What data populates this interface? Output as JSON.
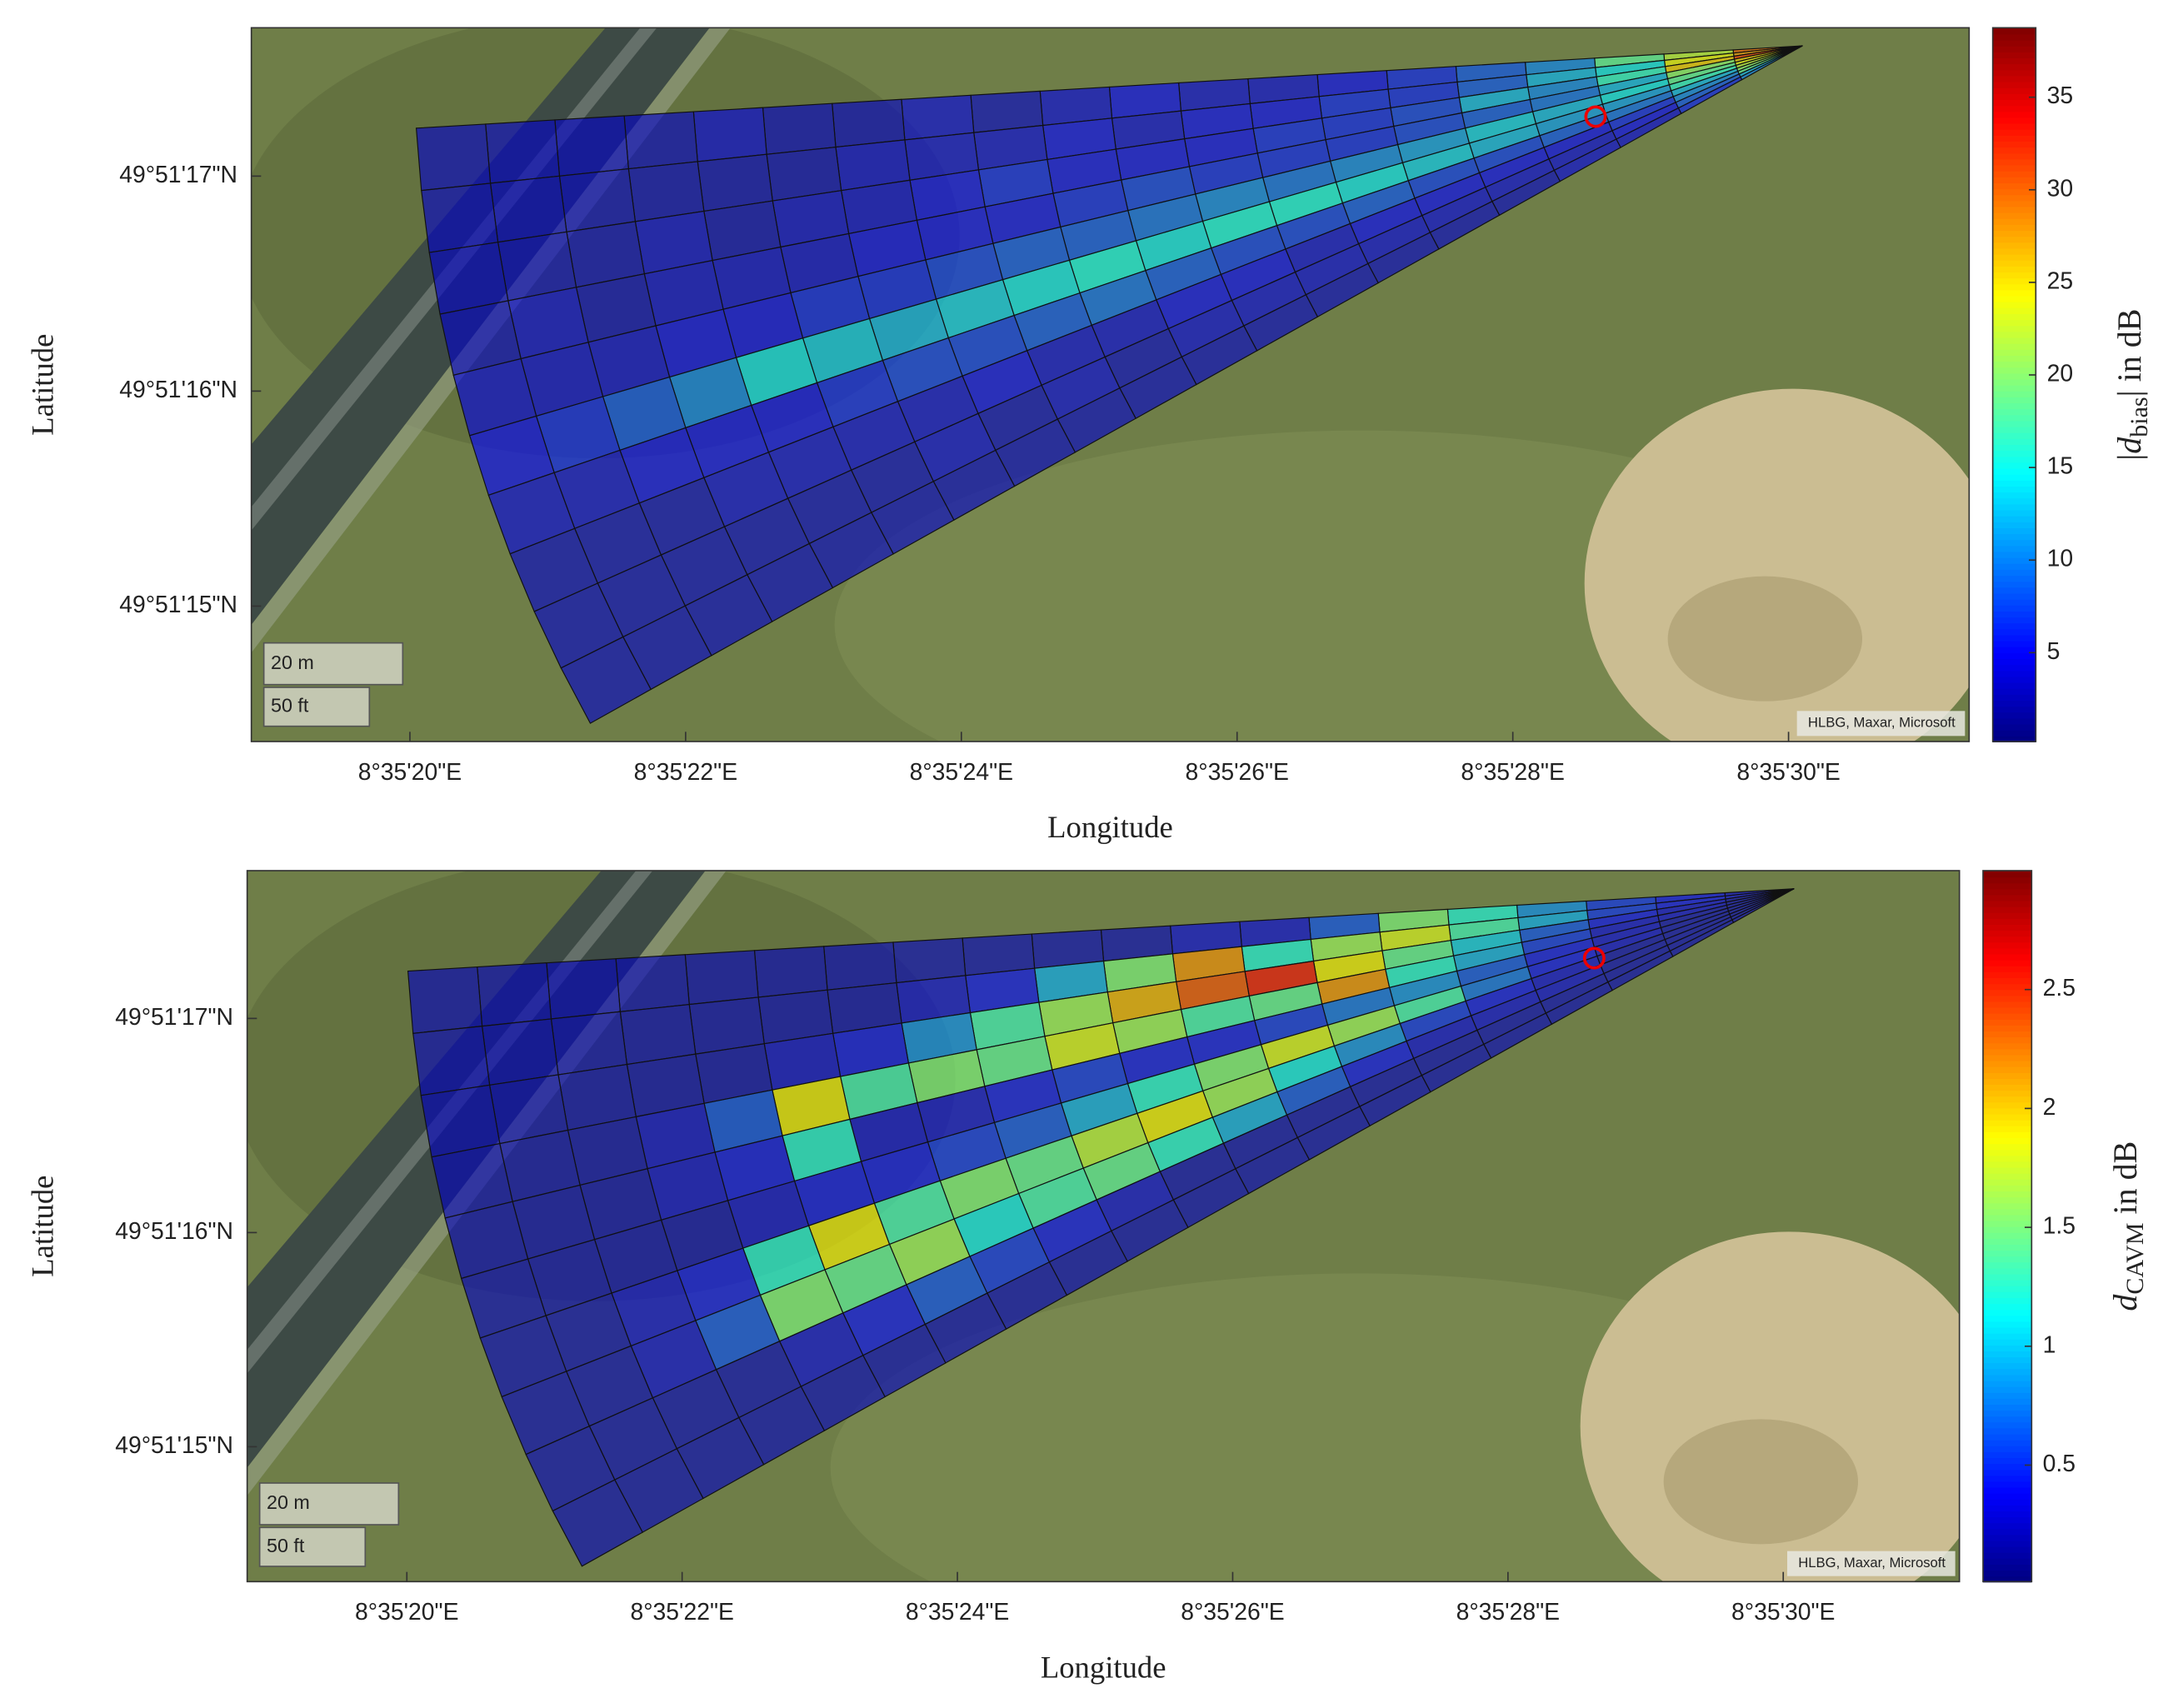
{
  "chart_data": [
    {
      "type": "map-heatmap",
      "xlabel": "Longitude",
      "ylabel": "Latitude",
      "xlim": [
        18.85,
        31.31
      ],
      "xticks": [
        {
          "value": 20,
          "label": "8°35'20\"E"
        },
        {
          "value": 22,
          "label": "8°35'22\"E"
        },
        {
          "value": 24,
          "label": "8°35'24\"E"
        },
        {
          "value": 26,
          "label": "8°35'26\"E"
        },
        {
          "value": 28,
          "label": "8°35'28\"E"
        },
        {
          "value": 30,
          "label": "8°35'30\"E"
        }
      ],
      "ylim": [
        14.37,
        17.69
      ],
      "yticks": [
        {
          "value": 15,
          "label": "49°51'15\"N"
        },
        {
          "value": 16,
          "label": "49°51'16\"N"
        },
        {
          "value": 17,
          "label": "49°51'17\"N"
        }
      ],
      "colormap": "jet",
      "clim": [
        0.2,
        38.75
      ],
      "cticks": [
        5,
        10,
        15,
        20,
        25,
        30,
        35
      ],
      "colorbar_label": {
        "prefix": "|",
        "symbol": "d",
        "subscript": "bias",
        "suffix": "| in dB"
      },
      "scale_bar": [
        "20 m",
        "50 ft"
      ],
      "attribution": "HLBG, Maxar, Microsoft",
      "values": [
        [
          30,
          22,
          18,
          10,
          8,
          6,
          5,
          4,
          4,
          5,
          4,
          3,
          4,
          3,
          3,
          4,
          3,
          3,
          3,
          3
        ],
        [
          28,
          24,
          14,
          12,
          8,
          6,
          6,
          5,
          5,
          4,
          5,
          4,
          4,
          4,
          3,
          3,
          3,
          3,
          3,
          3
        ],
        [
          32,
          26,
          16,
          10,
          12,
          7,
          6,
          6,
          5,
          5,
          5,
          6,
          5,
          4,
          4,
          3,
          4,
          3,
          3,
          3
        ],
        [
          26,
          20,
          12,
          9,
          8,
          7,
          6,
          6,
          6,
          7,
          6,
          5,
          5,
          5,
          4,
          4,
          4,
          3,
          4,
          3
        ],
        [
          24,
          18,
          14,
          12,
          13,
          11,
          10,
          9,
          10,
          9,
          8,
          8,
          7,
          6,
          6,
          5,
          5,
          4,
          4,
          4
        ],
        [
          22,
          16,
          11,
          11,
          12,
          13,
          14,
          15,
          15,
          14,
          15,
          14,
          13,
          12,
          13,
          14,
          10,
          8,
          6,
          5
        ],
        [
          20,
          12,
          9,
          8,
          7,
          7,
          8,
          7,
          7,
          8,
          9,
          8,
          7,
          7,
          6,
          5,
          5,
          5,
          4,
          4
        ],
        [
          18,
          10,
          6,
          5,
          5,
          5,
          5,
          4,
          5,
          5,
          4,
          4,
          5,
          4,
          4,
          4,
          4,
          3,
          3,
          3
        ],
        [
          12,
          8,
          5,
          4,
          4,
          4,
          4,
          4,
          4,
          4,
          3,
          4,
          3,
          4,
          3,
          3,
          3,
          3,
          3,
          3
        ],
        [
          10,
          6,
          4,
          4,
          3,
          3,
          3,
          3,
          3,
          3,
          3,
          3,
          3,
          3,
          3,
          3,
          3,
          3,
          3,
          3
        ]
      ]
    },
    {
      "type": "map-heatmap",
      "xlabel": "Longitude",
      "ylabel": "Latitude",
      "xlim": [
        18.84,
        31.28
      ],
      "xticks": [
        {
          "value": 20,
          "label": "8°35'20\"E"
        },
        {
          "value": 22,
          "label": "8°35'22\"E"
        },
        {
          "value": 24,
          "label": "8°35'24\"E"
        },
        {
          "value": 26,
          "label": "8°35'26\"E"
        },
        {
          "value": 28,
          "label": "8°35'28\"E"
        },
        {
          "value": 30,
          "label": "8°35'30\"E"
        }
      ],
      "ylim": [
        14.37,
        17.69
      ],
      "yticks": [
        {
          "value": 15,
          "label": "49°51'15\"N"
        },
        {
          "value": 16,
          "label": "49°51'16\"N"
        },
        {
          "value": 17,
          "label": "49°51'17\"N"
        }
      ],
      "colormap": "jet",
      "clim": [
        0.01,
        3.0
      ],
      "cticks": [
        0.5,
        1,
        1.5,
        2,
        2.5
      ],
      "colorbar_label": {
        "symbol": "d",
        "subscript": "CAVM",
        "suffix": " in dB"
      },
      "scale_bar": [
        "20 m",
        "50 ft"
      ],
      "attribution": "HLBG, Maxar, Microsoft",
      "values": [
        [
          0.3,
          0.4,
          0.5,
          0.8,
          1.2,
          1.5,
          0.6,
          0.3,
          0.3,
          0.2,
          0.2,
          0.2,
          0.2,
          0.2,
          0.2,
          0.2,
          0.2,
          0.2,
          0.2,
          0.2
        ],
        [
          0.3,
          0.4,
          0.5,
          0.9,
          1.3,
          1.8,
          1.6,
          1.2,
          2.2,
          1.5,
          0.9,
          0.4,
          0.3,
          0.2,
          0.2,
          0.2,
          0.2,
          0.2,
          0.2,
          0.2
        ],
        [
          0.2,
          0.3,
          0.4,
          0.6,
          1.0,
          1.4,
          1.9,
          2.6,
          2.4,
          2.1,
          1.6,
          1.3,
          0.8,
          0.4,
          0.3,
          0.2,
          0.2,
          0.2,
          0.2,
          0.2
        ],
        [
          0.2,
          0.3,
          0.3,
          0.5,
          0.9,
          1.2,
          2.2,
          1.4,
          1.3,
          1.6,
          1.8,
          1.4,
          1.5,
          1.3,
          1.9,
          0.6,
          0.3,
          0.2,
          0.2,
          0.2
        ],
        [
          0.2,
          0.2,
          0.3,
          0.4,
          0.6,
          0.8,
          0.7,
          0.5,
          0.4,
          0.4,
          0.5,
          0.4,
          0.3,
          0.3,
          1.2,
          0.4,
          0.3,
          0.2,
          0.2,
          0.2
        ],
        [
          0.2,
          0.2,
          0.3,
          0.4,
          0.7,
          1.3,
          1.6,
          1.8,
          1.5,
          1.2,
          0.9,
          0.6,
          0.5,
          0.4,
          0.4,
          0.3,
          0.2,
          0.2,
          0.2,
          0.2
        ],
        [
          0.2,
          0.2,
          0.2,
          0.3,
          0.4,
          0.5,
          0.8,
          1.1,
          1.6,
          1.9,
          1.7,
          1.4,
          1.5,
          1.3,
          1.9,
          1.2,
          0.4,
          0.3,
          0.2,
          0.2
        ],
        [
          0.2,
          0.2,
          0.2,
          0.3,
          0.3,
          0.3,
          0.4,
          0.6,
          0.9,
          1.2,
          1.4,
          1.3,
          1.1,
          1.6,
          1.4,
          1.5,
          0.6,
          0.3,
          0.2,
          0.2
        ],
        [
          0.2,
          0.2,
          0.2,
          0.2,
          0.2,
          0.2,
          0.2,
          0.2,
          0.2,
          0.2,
          0.3,
          0.4,
          0.5,
          0.6,
          0.4,
          0.3,
          0.2,
          0.2,
          0.2,
          0.2
        ],
        [
          0.2,
          0.2,
          0.2,
          0.2,
          0.2,
          0.2,
          0.2,
          0.2,
          0.2,
          0.2,
          0.2,
          0.2,
          0.2,
          0.2,
          0.2,
          0.2,
          0.2,
          0.2,
          0.2,
          0.2
        ]
      ]
    }
  ]
}
